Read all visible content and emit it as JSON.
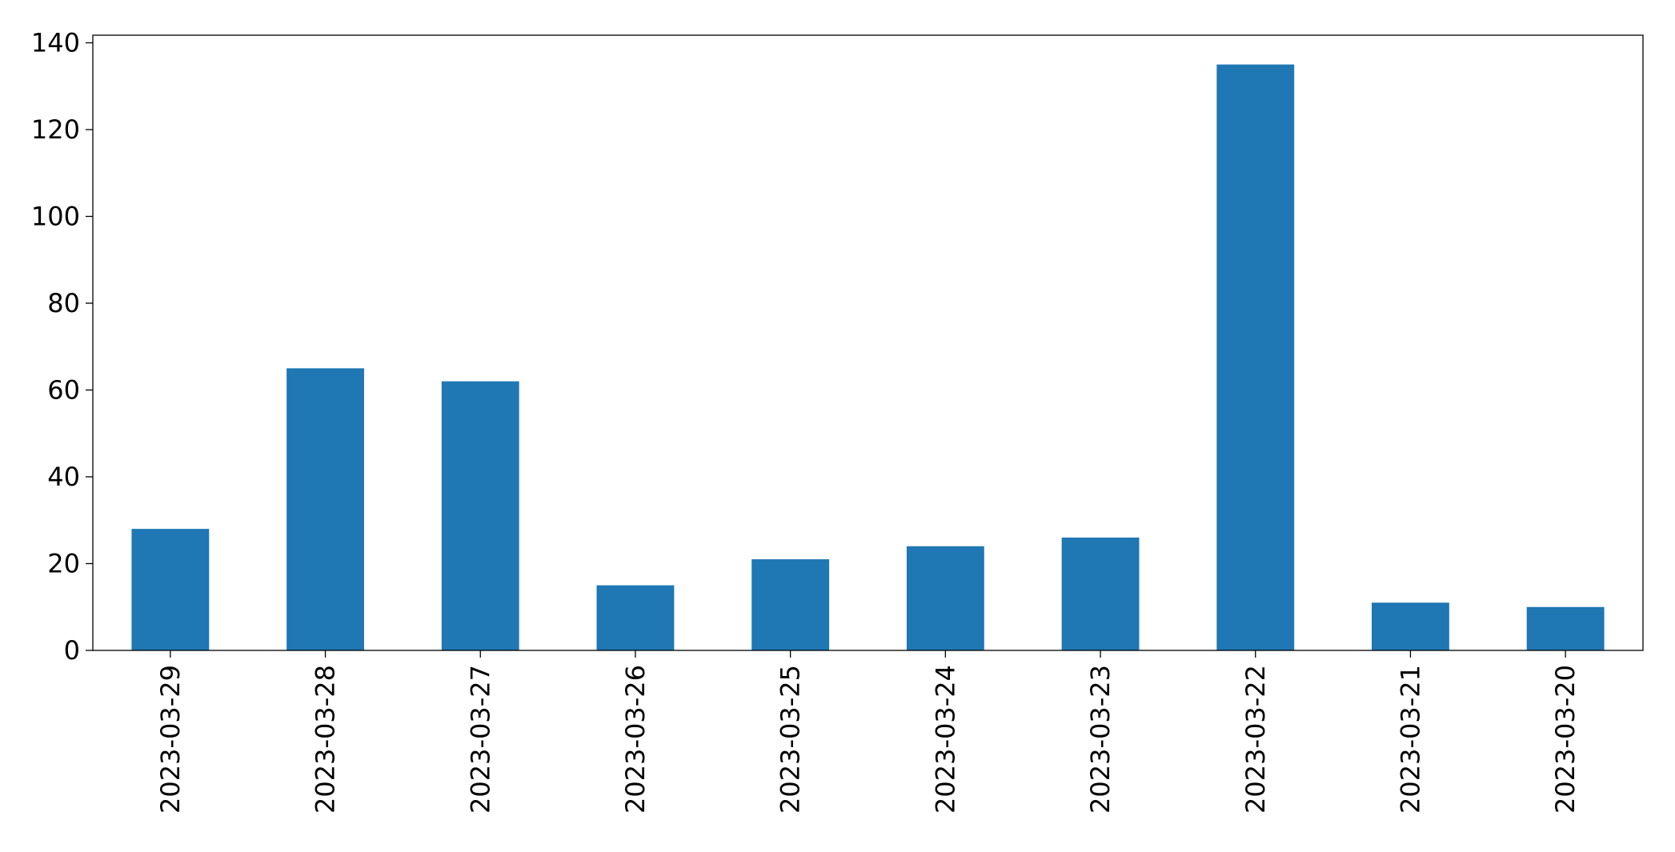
{
  "chart_data": {
    "type": "bar",
    "categories": [
      "2023-03-29",
      "2023-03-28",
      "2023-03-27",
      "2023-03-26",
      "2023-03-25",
      "2023-03-24",
      "2023-03-23",
      "2023-03-22",
      "2023-03-21",
      "2023-03-20"
    ],
    "values": [
      28,
      65,
      62,
      15,
      21,
      24,
      26,
      135,
      11,
      10
    ],
    "color": "#1f77b4",
    "ylim": [
      0,
      141.75
    ],
    "yticks": [
      0,
      20,
      40,
      60,
      80,
      100,
      120,
      140
    ],
    "grid": false
  }
}
